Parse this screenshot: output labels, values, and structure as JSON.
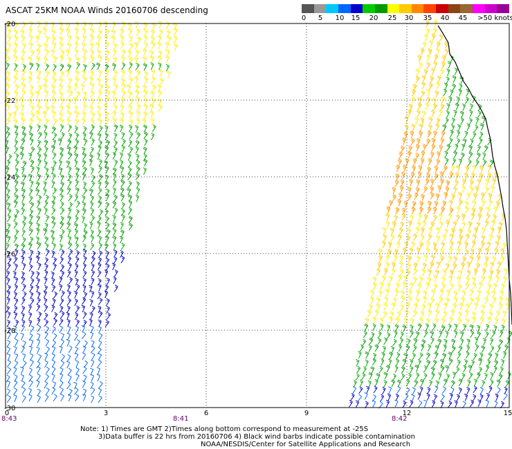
{
  "title": "ASCAT 25KM NOAA Winds 20160706 descending",
  "legend": {
    "colors": [
      "#555555",
      "#999999",
      "#00c8ff",
      "#0066ff",
      "#0000cc",
      "#00cc00",
      "#009900",
      "#ffff00",
      "#ffcc00",
      "#ff8800",
      "#ff4400",
      "#cc0000",
      "#8b4513",
      "#996633",
      "#ff00ff",
      "#cc00cc",
      "#990099"
    ],
    "labels": [
      "0",
      "5",
      "10",
      "15",
      "20",
      "25",
      "30",
      "35",
      "40",
      "45",
      ">50 knots"
    ]
  },
  "map": {
    "lat_labels": [
      "-20",
      "-22",
      "-24",
      "-26",
      "-28",
      "-30"
    ],
    "lon_labels": [
      "0",
      "3",
      "6",
      "9",
      "12",
      "15"
    ],
    "time_labels": [
      "8:43",
      "8:41",
      "8:42"
    ]
  },
  "notes": {
    "line1": "Note: 1) Times are GMT 2)Times along bottom correspond to measurement at -25S",
    "line2": "3)Data buffer is 22 hrs from 20160706 4) Black wind barbs indicate possible contamination",
    "line3": "NOAA/NESDIS/Center for Satellite Applications and Research"
  }
}
